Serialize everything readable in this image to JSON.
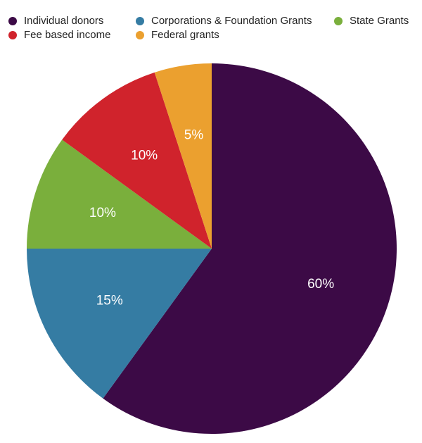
{
  "chart_data": {
    "type": "pie",
    "title": "",
    "slices": [
      {
        "label": "Individual donors",
        "value": 60,
        "display": "60%",
        "color": "#3c0a46"
      },
      {
        "label": "Corporations & Foundation Grants",
        "value": 15,
        "display": "15%",
        "color": "#357ca3"
      },
      {
        "label": "State Grants",
        "value": 10,
        "display": "10%",
        "color": "#7aaf3c"
      },
      {
        "label": "Fee based income",
        "value": 10,
        "display": "10%",
        "color": "#d0232c"
      },
      {
        "label": "Federal grants",
        "value": 5,
        "display": "5%",
        "color": "#eba02f"
      }
    ],
    "start_angle": "12 o'clock",
    "direction": "clockwise",
    "legend_position": "top"
  }
}
